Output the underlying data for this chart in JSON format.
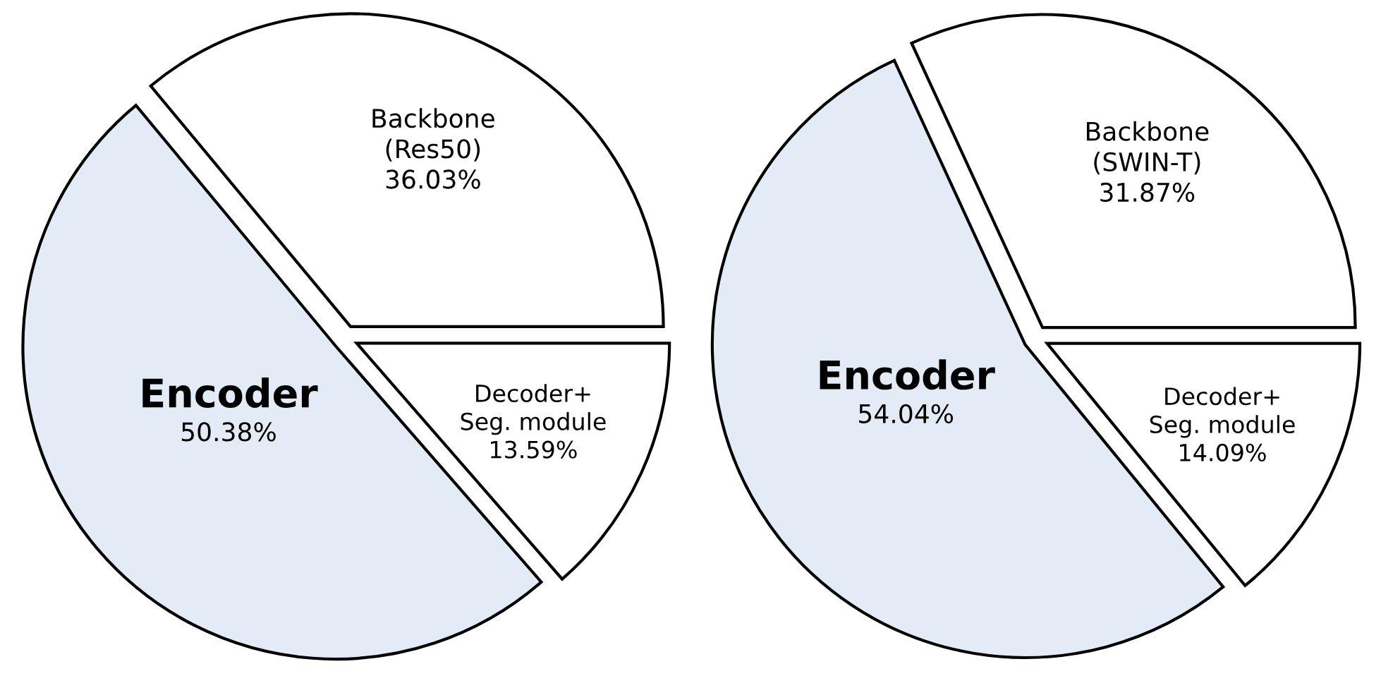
{
  "chart_data": [
    {
      "type": "pie",
      "categories": [
        "Backbone\n(Res50)",
        "Encoder",
        "Decoder+\nSeg. module"
      ],
      "values": [
        36.03,
        50.38,
        13.59
      ],
      "colors": [
        "#ffffff",
        "#e3ebf6",
        "#ffffff"
      ],
      "value_labels": [
        "36.03%",
        "50.38%",
        "13.59%"
      ]
    },
    {
      "type": "pie",
      "categories": [
        "Backbone\n(SWIN-T)",
        "Encoder",
        "Decoder+\nSeg. module"
      ],
      "values": [
        31.87,
        54.04,
        14.09
      ],
      "colors": [
        "#ffffff",
        "#e3ebf6",
        "#ffffff"
      ],
      "value_labels": [
        "31.87%",
        "54.04%",
        "14.09%"
      ]
    }
  ]
}
